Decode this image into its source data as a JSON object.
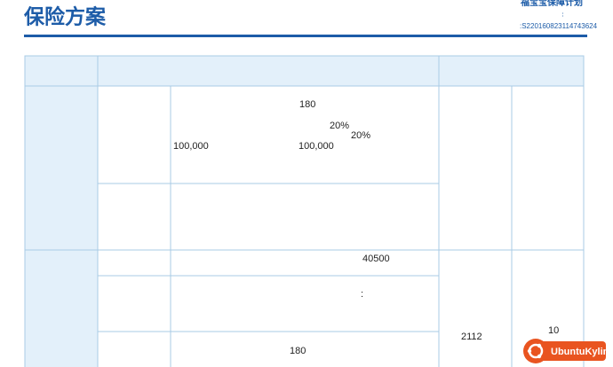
{
  "header": {
    "title": "保险方案",
    "plan_name": "福宝宝保障计划",
    "colon": ":",
    "policy_no": ":S220160823114743624"
  },
  "table": {
    "texts": [
      "180",
      "20%",
      "20%",
      "100,000",
      "100,000",
      "40500",
      ":",
      "180",
      "2112",
      "10"
    ]
  },
  "watermark": "UbuntuKylin"
}
